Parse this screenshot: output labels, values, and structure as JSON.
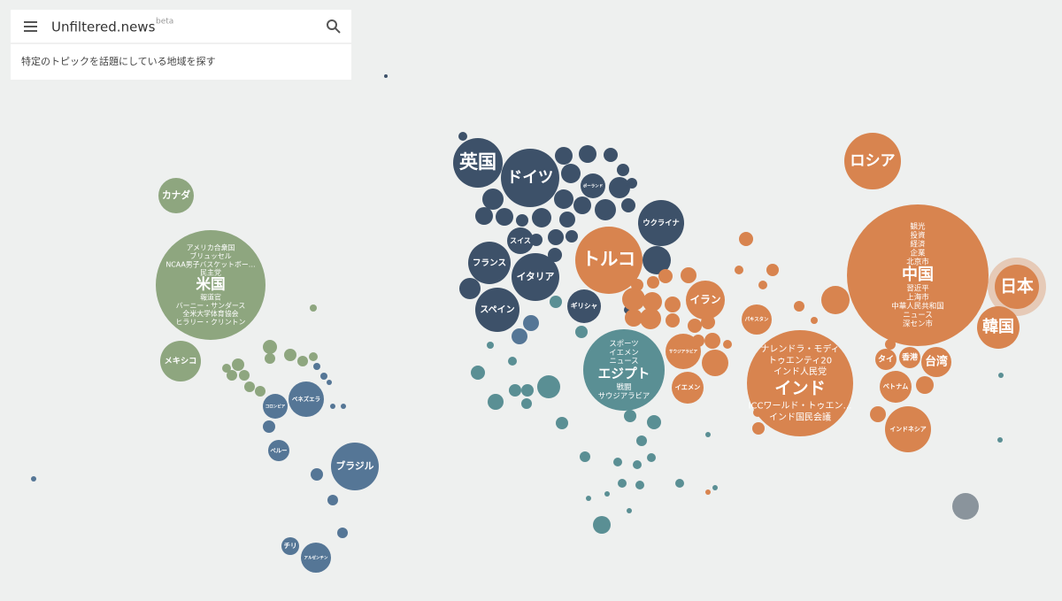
{
  "header": {
    "title": "Unfiltered.news",
    "badge": "beta",
    "subtitle": "特定のトピックを話題にしている地域を探す"
  },
  "bubbles": [
    {
      "label": "カナダ"
    },
    {
      "label": "米国",
      "topics": [
        "アメリカ合衆国",
        "ブリュッセル",
        "NCAA男子バスケットボー…",
        "民主党",
        "報道官",
        "バーニー・サンダース",
        "全米大学体育協会",
        "ヒラリー・クリントン"
      ]
    },
    {
      "label": "メキシコ"
    },
    {
      "label": "ベネズエラ"
    },
    {
      "label": "コロンビア"
    },
    {
      "label": "ペルー"
    },
    {
      "label": "ブラジル"
    },
    {
      "label": "チリ"
    },
    {
      "label": "アルゼンチン"
    },
    {
      "label": "英国"
    },
    {
      "label": "ドイツ"
    },
    {
      "label": "ウクライナ"
    },
    {
      "label": "フランス"
    },
    {
      "label": "イタリア"
    },
    {
      "label": "スペイン"
    },
    {
      "label": "スイス"
    },
    {
      "label": "ギリシャ"
    },
    {
      "label": "ポーランド"
    },
    {
      "label": "トルコ"
    },
    {
      "label": "イラン"
    },
    {
      "label": "エジプト",
      "topics": [
        "スポーツ",
        "イエメン",
        "ニュース",
        "戦闘",
        "サウジアラビア"
      ]
    },
    {
      "label": "サウジアラビア"
    },
    {
      "label": "イエメン"
    },
    {
      "label": "ロシア"
    },
    {
      "label": "中国",
      "topics": [
        "観光",
        "投資",
        "経済",
        "企業",
        "北京市",
        "習近平",
        "上海市",
        "中華人民共和国",
        "ニュース",
        "深セン市"
      ]
    },
    {
      "label": "日本"
    },
    {
      "label": "韓国"
    },
    {
      "label": "インド",
      "topics": [
        "ナレンドラ・モディ",
        "トゥエンティ20",
        "インド人民党",
        "ICCワールド・トゥエン…",
        "インド国民会議"
      ]
    },
    {
      "label": "台湾"
    },
    {
      "label": "香港"
    },
    {
      "label": "タイ"
    },
    {
      "label": "ベトナム"
    },
    {
      "label": "インドネシア"
    },
    {
      "label": "パキスタン"
    }
  ]
}
